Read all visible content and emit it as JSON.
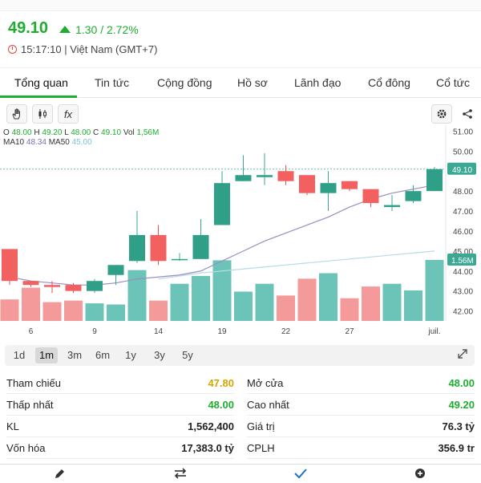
{
  "header": {
    "price": "49.10",
    "change": "1.30 / 2.72%",
    "time": "15:17:10 | Việt Nam (GMT+7)"
  },
  "tabs": [
    "Tổng quan",
    "Tin tức",
    "Cộng đồng",
    "Hồ sơ",
    "Lãnh đạo",
    "Cổ đông",
    "Cổ tức"
  ],
  "toolbar": {
    "hand_icon": "hand-icon",
    "candle_icon": "candlestick-icon",
    "fx_label": "fx",
    "gear_icon": "gear-icon",
    "share_icon": "share-icon"
  },
  "ohlc": {
    "o_label": "O",
    "o": "48.00",
    "h_label": "H",
    "h": "49.20",
    "l_label": "L",
    "l": "48.00",
    "c_label": "C",
    "c": "49.10",
    "vol_label": "Vol",
    "vol": "1,56M"
  },
  "ma": {
    "ma10_label": "MA10",
    "ma10": "48.34",
    "ma50_label": "MA50",
    "ma50": "45.00"
  },
  "chart_data": {
    "type": "candlestick",
    "y_ticks": [
      "51.00",
      "50.00",
      "49.00",
      "48.00",
      "47.00",
      "46.00",
      "45.00",
      "44.00",
      "43.00",
      "42.00"
    ],
    "ylim": [
      41.5,
      51.3
    ],
    "x_ticks": [
      "6",
      "9",
      "14",
      "19",
      "22",
      "27",
      "juil."
    ],
    "last_price_label": "49.10",
    "last_price": 49.1,
    "volume_label": "1.56M",
    "candles": [
      {
        "o": 45.1,
        "h": 45.1,
        "l": 43.3,
        "c": 43.5,
        "up": false
      },
      {
        "o": 43.5,
        "h": 43.5,
        "l": 43.2,
        "c": 43.3,
        "up": false
      },
      {
        "o": 43.3,
        "h": 43.5,
        "l": 42.9,
        "c": 43.2,
        "up": false
      },
      {
        "o": 43.3,
        "h": 43.4,
        "l": 42.9,
        "c": 43.0,
        "up": false
      },
      {
        "o": 43.0,
        "h": 43.6,
        "l": 42.9,
        "c": 43.5,
        "up": true
      },
      {
        "o": 43.8,
        "h": 44.3,
        "l": 43.3,
        "c": 44.3,
        "up": true
      },
      {
        "o": 44.5,
        "h": 47.0,
        "l": 44.4,
        "c": 45.8,
        "up": true
      },
      {
        "o": 45.8,
        "h": 46.3,
        "l": 44.3,
        "c": 44.5,
        "up": false
      },
      {
        "o": 44.6,
        "h": 44.9,
        "l": 44.5,
        "c": 44.6,
        "up": true
      },
      {
        "o": 44.6,
        "h": 46.6,
        "l": 44.6,
        "c": 45.8,
        "up": true
      },
      {
        "o": 46.3,
        "h": 49.0,
        "l": 46.3,
        "c": 48.4,
        "up": true
      },
      {
        "o": 48.5,
        "h": 49.8,
        "l": 48.5,
        "c": 48.8,
        "up": true
      },
      {
        "o": 48.7,
        "h": 49.9,
        "l": 48.3,
        "c": 48.8,
        "up": true
      },
      {
        "o": 49.0,
        "h": 49.3,
        "l": 48.3,
        "c": 48.5,
        "up": false
      },
      {
        "o": 48.8,
        "h": 48.8,
        "l": 47.8,
        "c": 47.9,
        "up": false
      },
      {
        "o": 47.9,
        "h": 49.0,
        "l": 47.0,
        "c": 48.4,
        "up": true
      },
      {
        "o": 48.5,
        "h": 48.5,
        "l": 48.0,
        "c": 48.1,
        "up": false
      },
      {
        "o": 48.1,
        "h": 48.1,
        "l": 47.2,
        "c": 47.4,
        "up": false
      },
      {
        "o": 47.3,
        "h": 47.8,
        "l": 47.0,
        "c": 47.2,
        "up": true
      },
      {
        "o": 47.5,
        "h": 48.3,
        "l": 47.4,
        "c": 48.0,
        "up": true
      },
      {
        "o": 48.0,
        "h": 49.2,
        "l": 48.0,
        "c": 49.1,
        "up": true
      }
    ],
    "volume": [
      0.55,
      0.85,
      0.48,
      0.52,
      0.45,
      0.42,
      1.3,
      0.52,
      0.95,
      1.15,
      1.55,
      0.75,
      0.95,
      0.65,
      1.08,
      1.22,
      0.58,
      0.88,
      0.95,
      0.78,
      1.56
    ],
    "volume_up": [
      false,
      false,
      false,
      false,
      true,
      true,
      true,
      false,
      true,
      true,
      true,
      true,
      true,
      false,
      false,
      true,
      false,
      false,
      true,
      true,
      true
    ],
    "ma10": [
      43.7,
      43.5,
      43.4,
      43.3,
      43.3,
      43.4,
      43.6,
      43.7,
      43.8,
      44.0,
      44.5,
      45.0,
      45.5,
      45.9,
      46.3,
      46.7,
      47.2,
      47.6,
      47.9,
      48.1,
      48.3
    ],
    "ma50_start_index": 7,
    "ma50": [
      43.6,
      43.75,
      43.9,
      44.0,
      44.1,
      44.2,
      44.3,
      44.4,
      44.5,
      44.6,
      44.7,
      44.8,
      44.9,
      45.0
    ]
  },
  "periods": [
    "1d",
    "1m",
    "3m",
    "6m",
    "1y",
    "3y",
    "5y"
  ],
  "active_period": "1m",
  "stats": {
    "tham_chieu_label": "Tham chiếu",
    "tham_chieu": "47.80",
    "mo_cua_label": "Mở cửa",
    "mo_cua": "48.00",
    "thap_nhat_label": "Thấp nhất",
    "thap_nhat": "48.00",
    "cao_nhat_label": "Cao nhất",
    "cao_nhat": "49.20",
    "kl_label": "KL",
    "kl": "1,562,400",
    "gia_tri_label": "Giá trị",
    "gia_tri": "76.3 tỷ",
    "von_hoa_label": "Vốn hóa",
    "von_hoa": "17,383.0 tỷ",
    "cplh_label": "CPLH",
    "cplh": "356.9 tr"
  },
  "colors": {
    "up": "#5bbcaf",
    "down": "#ee5b5b",
    "accent": "#1eae2f"
  }
}
